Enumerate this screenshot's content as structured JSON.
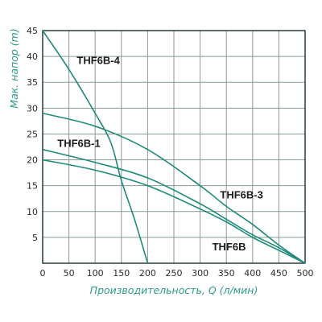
{
  "chart_data": {
    "type": "line",
    "title": "",
    "xlabel": "Производительность, Q (л/мин)",
    "ylabel": "Мак. напор (m)",
    "xlim": [
      0,
      500
    ],
    "ylim": [
      0,
      45
    ],
    "xticks": [
      0,
      50,
      100,
      150,
      200,
      250,
      300,
      350,
      400,
      450,
      500
    ],
    "yticks": [
      5,
      10,
      15,
      20,
      25,
      30,
      35,
      40,
      45
    ],
    "grid": true,
    "colors": {
      "curve": "#1f8a7a",
      "axis_title": "#2d9c8a",
      "grid": "#8a9a96"
    },
    "series": [
      {
        "name": "THF6B-4",
        "x": [
          0,
          50,
          100,
          130,
          150,
          175,
          200
        ],
        "y": [
          45,
          37.5,
          29,
          23.3,
          16,
          8.5,
          0
        ]
      },
      {
        "name": "THF6B-1",
        "x": [
          0,
          100,
          200,
          300,
          350,
          400,
          450,
          500
        ],
        "y": [
          29,
          26.5,
          22,
          15,
          11,
          7.5,
          3.5,
          0
        ]
      },
      {
        "name": "THF6B-3",
        "x": [
          0,
          100,
          200,
          300,
          350,
          400,
          450,
          500
        ],
        "y": [
          22,
          19.5,
          16.5,
          11.5,
          8.5,
          5.5,
          3,
          0
        ]
      },
      {
        "name": "THF6B",
        "x": [
          0,
          100,
          200,
          300,
          350,
          400,
          450,
          500
        ],
        "y": [
          20,
          18,
          15,
          10.5,
          8,
          5,
          2.5,
          0
        ]
      }
    ],
    "annotations": [
      {
        "text": "THF6B-4",
        "x": 65,
        "y": 38.5
      },
      {
        "text": "THF6B-1",
        "x": 28,
        "y": 22.5
      },
      {
        "text": "THF6B-3",
        "x": 338,
        "y": 12.5
      },
      {
        "text": "THF6B",
        "x": 323,
        "y": 2.5
      }
    ]
  }
}
